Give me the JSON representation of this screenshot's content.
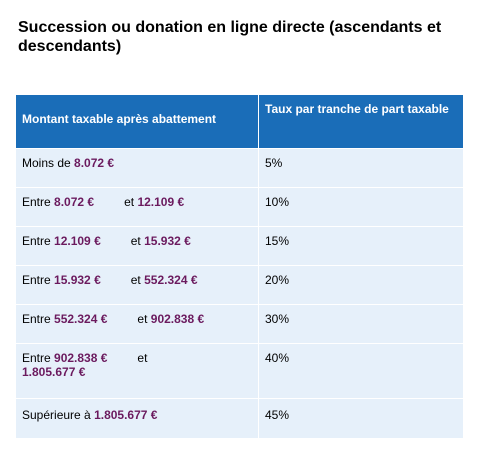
{
  "title": "Succession ou donation en ligne directe (ascendants et descendants)",
  "table": {
    "headers": [
      "Montant taxable après abattement",
      "Taux par tranche de part taxable"
    ],
    "rows": [
      {
        "prefix": "Moins de",
        "low": "8.072 €",
        "mid": "",
        "high": "",
        "rate": "5%"
      },
      {
        "prefix": "Entre",
        "low": "8.072 €",
        "mid": "et",
        "high": "12.109 €",
        "rate": "10%"
      },
      {
        "prefix": "Entre",
        "low": "12.109 €",
        "mid": "et",
        "high": "15.932 €",
        "rate": "15%"
      },
      {
        "prefix": "Entre",
        "low": "15.932 €",
        "mid": "et",
        "high": "552.324 €",
        "rate": "20%"
      },
      {
        "prefix": "Entre",
        "low": "552.324 €",
        "mid": "et",
        "high": "902.838 €",
        "rate": "30%"
      },
      {
        "prefix": "Entre",
        "low": "902.838 €",
        "mid": "et",
        "high": "1.805.677 €",
        "rate": "40%"
      },
      {
        "prefix": "Supérieure à",
        "low": "1.805.677 €",
        "mid": "",
        "high": "",
        "rate": "45%"
      }
    ]
  }
}
